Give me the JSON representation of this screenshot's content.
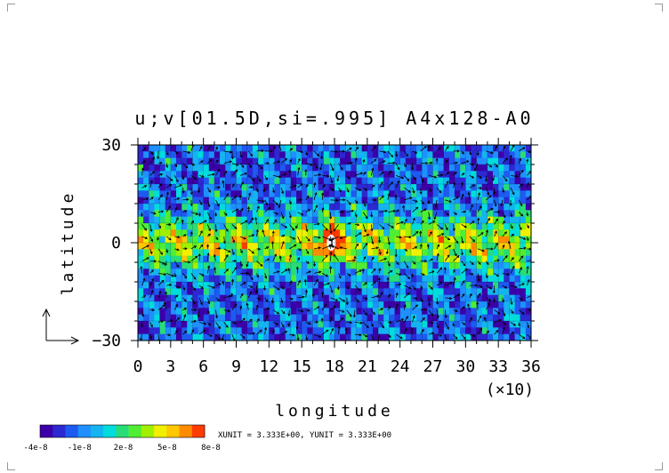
{
  "chart_data": {
    "type": "heatmap",
    "title": "u;v[01.5D,si=.995] A4x128-A0",
    "xlabel": "longitude",
    "ylabel": "latitude",
    "x_multiplier": "(×10)",
    "xlim": [
      0,
      36
    ],
    "ylim": [
      -30,
      30
    ],
    "x_ticks": [
      "0",
      "3",
      "6",
      "9",
      "12",
      "15",
      "18",
      "21",
      "24",
      "27",
      "30",
      "33",
      "36"
    ],
    "y_ticks": [
      "30",
      "0",
      "-30"
    ],
    "y_ticks_display": [
      "30",
      "0",
      "−30"
    ],
    "colorbar": {
      "tick_labels": [
        "-4e-8",
        "-1e-8",
        "2e-8",
        "5e-8",
        "8e-8"
      ],
      "colors": [
        "#3c00a8",
        "#2c28d2",
        "#1e5af0",
        "#1e90ff",
        "#14b4f0",
        "#00dcdc",
        "#28dc78",
        "#50ee32",
        "#a0f000",
        "#f0f000",
        "#ffc800",
        "#ff8c00",
        "#ff3c00"
      ]
    },
    "units_note": "XUNIT = 3.333E+00, YUNIT = 3.333E+00",
    "features": {
      "equatorial_band": {
        "lat_range": [
          -10,
          10
        ],
        "level": "high"
      },
      "peak": {
        "lon": 17.7,
        "lat": 0,
        "level": "max"
      }
    }
  }
}
